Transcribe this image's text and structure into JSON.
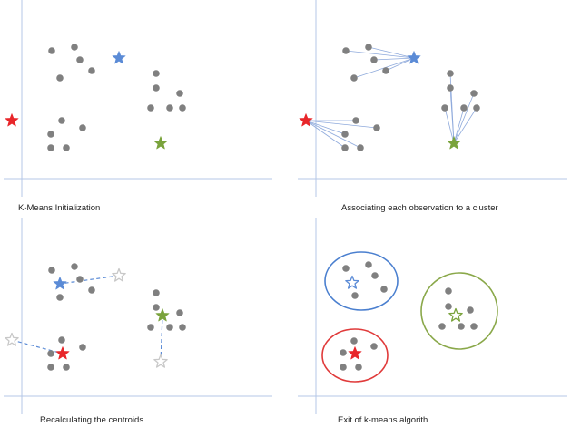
{
  "colors": {
    "axis": "#b4c7e7",
    "point": "#808080",
    "red": "#e8262a",
    "blue": "#5b8bd6",
    "green": "#7aa33c",
    "gray_star": "#c8c8c8",
    "blue_line": "#8faadc",
    "circle_blue": "#4a7fcf",
    "circle_green": "#8aa84a",
    "circle_red": "#e03a3a"
  },
  "panels": [
    {
      "id": "init",
      "caption": "K-Means Initialization"
    },
    {
      "id": "associate",
      "caption": "Associating each observation to a cluster"
    },
    {
      "id": "recalc",
      "caption": "Recalculating the centroids"
    },
    {
      "id": "exit",
      "caption": "Exit of k-means algorith"
    }
  ]
}
